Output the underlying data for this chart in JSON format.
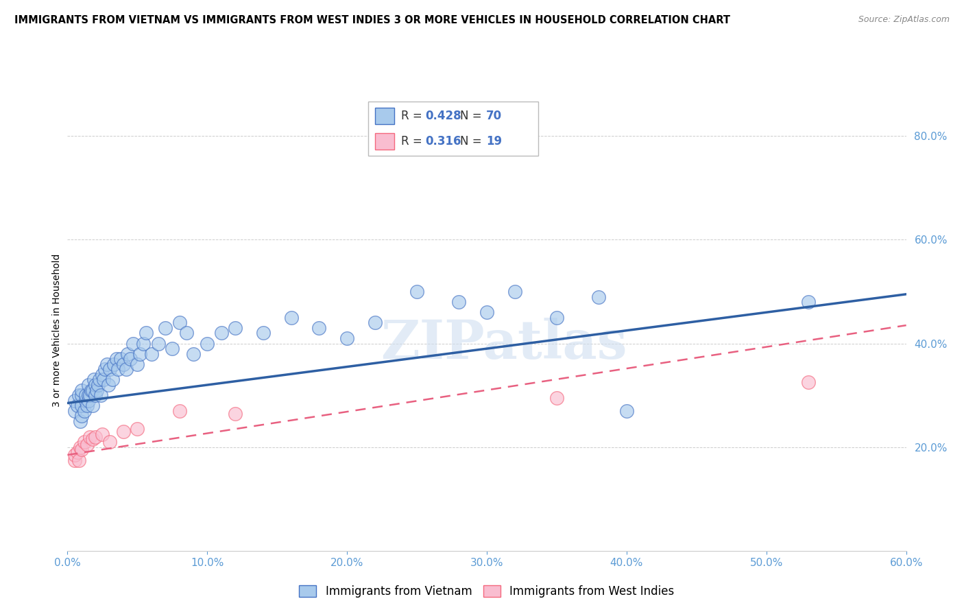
{
  "title": "IMMIGRANTS FROM VIETNAM VS IMMIGRANTS FROM WEST INDIES 3 OR MORE VEHICLES IN HOUSEHOLD CORRELATION CHART",
  "source": "Source: ZipAtlas.com",
  "ylabel": "3 or more Vehicles in Household",
  "xlim": [
    0.0,
    0.6
  ],
  "ylim": [
    0.0,
    0.85
  ],
  "xticks": [
    0.0,
    0.1,
    0.2,
    0.3,
    0.4,
    0.5,
    0.6
  ],
  "yticks_right": [
    0.2,
    0.4,
    0.6,
    0.8
  ],
  "legend1_R": "0.428",
  "legend1_N": "70",
  "legend2_R": "0.316",
  "legend2_N": "19",
  "legend_label1": "Immigrants from Vietnam",
  "legend_label2": "Immigrants from West Indies",
  "color_blue": "#a8caec",
  "color_pink": "#f9bdd0",
  "color_blue_edge": "#4472c4",
  "color_pink_edge": "#f4687e",
  "color_blue_line": "#2e5fa3",
  "color_pink_line": "#e86080",
  "watermark": "ZIPatlas",
  "vietnam_x": [
    0.005,
    0.005,
    0.007,
    0.008,
    0.009,
    0.01,
    0.01,
    0.01,
    0.01,
    0.012,
    0.013,
    0.013,
    0.014,
    0.015,
    0.015,
    0.015,
    0.016,
    0.017,
    0.018,
    0.018,
    0.019,
    0.02,
    0.02,
    0.021,
    0.022,
    0.023,
    0.024,
    0.025,
    0.026,
    0.027,
    0.028,
    0.029,
    0.03,
    0.032,
    0.033,
    0.035,
    0.036,
    0.038,
    0.04,
    0.042,
    0.043,
    0.045,
    0.047,
    0.05,
    0.052,
    0.054,
    0.056,
    0.06,
    0.065,
    0.07,
    0.075,
    0.08,
    0.085,
    0.09,
    0.1,
    0.11,
    0.12,
    0.14,
    0.16,
    0.18,
    0.2,
    0.22,
    0.25,
    0.28,
    0.3,
    0.32,
    0.35,
    0.38,
    0.4,
    0.53
  ],
  "vietnam_y": [
    0.27,
    0.29,
    0.28,
    0.3,
    0.25,
    0.26,
    0.28,
    0.3,
    0.31,
    0.27,
    0.29,
    0.3,
    0.28,
    0.29,
    0.3,
    0.32,
    0.3,
    0.31,
    0.28,
    0.31,
    0.33,
    0.3,
    0.32,
    0.31,
    0.32,
    0.33,
    0.3,
    0.34,
    0.33,
    0.35,
    0.36,
    0.32,
    0.35,
    0.33,
    0.36,
    0.37,
    0.35,
    0.37,
    0.36,
    0.35,
    0.38,
    0.37,
    0.4,
    0.36,
    0.38,
    0.4,
    0.42,
    0.38,
    0.4,
    0.43,
    0.39,
    0.44,
    0.42,
    0.38,
    0.4,
    0.42,
    0.43,
    0.42,
    0.45,
    0.43,
    0.41,
    0.44,
    0.5,
    0.48,
    0.46,
    0.5,
    0.45,
    0.49,
    0.27,
    0.48
  ],
  "westindies_x": [
    0.005,
    0.005,
    0.007,
    0.008,
    0.009,
    0.01,
    0.012,
    0.014,
    0.016,
    0.018,
    0.02,
    0.025,
    0.03,
    0.04,
    0.05,
    0.08,
    0.12,
    0.35,
    0.53
  ],
  "westindies_y": [
    0.175,
    0.185,
    0.19,
    0.175,
    0.2,
    0.195,
    0.21,
    0.205,
    0.22,
    0.215,
    0.22,
    0.225,
    0.21,
    0.23,
    0.235,
    0.27,
    0.265,
    0.295,
    0.325
  ],
  "blue_trend_x0": 0.0,
  "blue_trend_y0": 0.285,
  "blue_trend_x1": 0.6,
  "blue_trend_y1": 0.495,
  "pink_trend_x0": 0.0,
  "pink_trend_y0": 0.185,
  "pink_trend_x1": 0.6,
  "pink_trend_y1": 0.435
}
